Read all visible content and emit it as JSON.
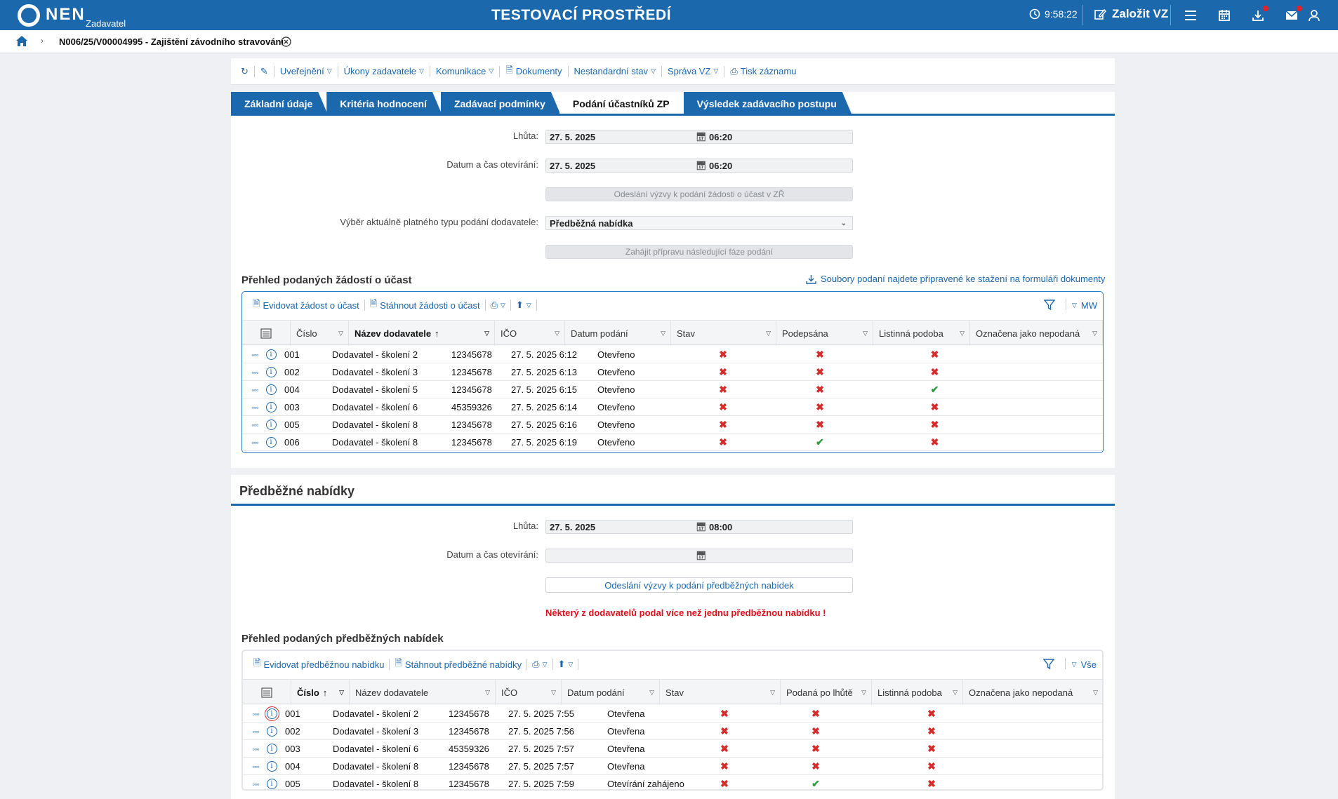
{
  "topbar": {
    "logo": "NEN",
    "logo_sub": "Zadavatel",
    "env_title": "TESTOVACÍ PROSTŘEDÍ",
    "clock": "9:58:22",
    "create_label": "Založit VZ"
  },
  "breadcrumb": {
    "title": "N006/25/V00004995 - Zajištění závodního stravování"
  },
  "toolbar": {
    "items": [
      "Uveřejnění",
      "Úkony zadavatele",
      "Komunikace",
      "Dokumenty",
      "Nestandardní stav",
      "Správa VZ",
      "Tisk záznamu"
    ]
  },
  "tabs": [
    "Základní údaje",
    "Kritéria hodnocení",
    "Zadávací podmínky",
    "Podání účastníků ZP",
    "Výsledek zadávacího postupu"
  ],
  "section1": {
    "lhuta_label": "Lhůta:",
    "lhuta_date": "27. 5. 2025",
    "lhuta_time": "06:20",
    "open_label": "Datum a čas otevírání:",
    "open_date": "27. 5. 2025",
    "open_time": "06:20",
    "send_btn": "Odeslání výzvy k podání žádosti o účast v ZŘ",
    "type_label": "Výběr aktuálně platného typu podání dodavatele:",
    "type_value": "Předběžná nabídka",
    "prepare_btn": "Zahájit přípravu následující fáze podání",
    "grid_title": "Přehled podaných žádostí o účast",
    "files_link": "Soubory podaní najdete připravené ke stažení na formuláři dokumenty",
    "tool_register": "Evidovat žádost o účast",
    "tool_download": "Stáhnout žádosti o účast",
    "view_label": "MW",
    "columns": [
      "Číslo",
      "Název dodavatele",
      "IČO",
      "Datum podání",
      "Stav",
      "Podepsána",
      "Listinná podoba",
      "Označena jako nepodaná"
    ],
    "rows": [
      {
        "num": "001",
        "name": "Dodavatel - školení 2",
        "ico": "12345678",
        "date": "27. 5. 2025 6:12",
        "state": "Otevřeno",
        "c1": "x",
        "c2": "x",
        "c3": "x"
      },
      {
        "num": "002",
        "name": "Dodavatel - školení 3",
        "ico": "12345678",
        "date": "27. 5. 2025 6:13",
        "state": "Otevřeno",
        "c1": "x",
        "c2": "x",
        "c3": "x"
      },
      {
        "num": "004",
        "name": "Dodavatel - školení 5",
        "ico": "12345678",
        "date": "27. 5. 2025 6:15",
        "state": "Otevřeno",
        "c1": "x",
        "c2": "x",
        "c3": "v"
      },
      {
        "num": "003",
        "name": "Dodavatel - školení 6",
        "ico": "45359326",
        "date": "27. 5. 2025 6:14",
        "state": "Otevřeno",
        "c1": "x",
        "c2": "x",
        "c3": "x"
      },
      {
        "num": "005",
        "name": "Dodavatel - školení 8",
        "ico": "12345678",
        "date": "27. 5. 2025 6:16",
        "state": "Otevřeno",
        "c1": "x",
        "c2": "x",
        "c3": "x"
      },
      {
        "num": "006",
        "name": "Dodavatel - školení 8",
        "ico": "12345678",
        "date": "27. 5. 2025 6:19",
        "state": "Otevřeno",
        "c1": "x",
        "c2": "v",
        "c3": "x"
      }
    ]
  },
  "section2": {
    "heading": "Předběžné nabídky",
    "lhuta_label": "Lhůta:",
    "lhuta_date": "27. 5. 2025",
    "lhuta_time": "08:00",
    "open_label": "Datum a čas otevírání:",
    "send_btn": "Odeslání výzvy k podání předběžných nabídek",
    "warning": "Některý z dodavatelů podal více než jednu předběžnou nabídku !",
    "grid_title": "Přehled podaných předběžných nabídek",
    "tool_register": "Evidovat předběžnou nabídku",
    "tool_download": "Stáhnout předběžné nabídky",
    "view_label": "Vše",
    "columns": [
      "Číslo",
      "Název dodavatele",
      "IČO",
      "Datum podání",
      "Stav",
      "Podaná po lhůtě",
      "Listinná podoba",
      "Označena jako nepodaná"
    ],
    "rows": [
      {
        "num": "001",
        "name": "Dodavatel - školení 2",
        "ico": "12345678",
        "date": "27. 5. 2025 7:55",
        "state": "Otevřena",
        "c1": "x",
        "c2": "x",
        "c3": "x"
      },
      {
        "num": "002",
        "name": "Dodavatel - školení 3",
        "ico": "12345678",
        "date": "27. 5. 2025 7:56",
        "state": "Otevřena",
        "c1": "x",
        "c2": "x",
        "c3": "x"
      },
      {
        "num": "003",
        "name": "Dodavatel - školení 6",
        "ico": "45359326",
        "date": "27. 5. 2025 7:57",
        "state": "Otevřena",
        "c1": "x",
        "c2": "x",
        "c3": "x"
      },
      {
        "num": "004",
        "name": "Dodavatel - školení 8",
        "ico": "12345678",
        "date": "27. 5. 2025 7:57",
        "state": "Otevřena",
        "c1": "x",
        "c2": "x",
        "c3": "x"
      },
      {
        "num": "005",
        "name": "Dodavatel - školení 8",
        "ico": "12345678",
        "date": "27. 5. 2025 7:59",
        "state": "Otevírání zahájeno",
        "c1": "x",
        "c2": "v",
        "c3": "x"
      }
    ]
  },
  "colors": {
    "brand": "#1c68ad",
    "link": "#1b67ae",
    "cross": "#d62b2b",
    "check": "#2e9c3f",
    "warning": "#e0101a"
  }
}
